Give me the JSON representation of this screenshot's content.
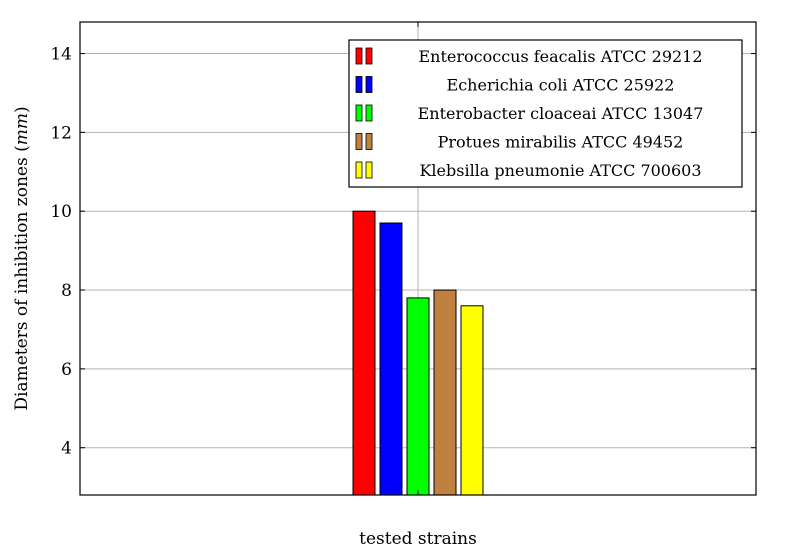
{
  "chart_data": {
    "type": "bar",
    "categories": [
      "tested strains"
    ],
    "xlabel": "tested strains",
    "ylabel_text": "Diameters of inhibition zones (",
    "ylabel_unit": "mm",
    "ylabel_close": ")",
    "ylim": [
      2.8,
      14.8
    ],
    "yticks": [
      4,
      6,
      8,
      10,
      12,
      14
    ],
    "ytick_labels": [
      "4",
      "6",
      "8",
      "10",
      "12",
      "14"
    ],
    "grid": true,
    "legend_position": "top-right",
    "series": [
      {
        "name": "Enterococcus feacalis ATCC 29212",
        "value": 10.0,
        "color": "#ff0000"
      },
      {
        "name": "Echerichia coli ATCC 25922",
        "value": 9.7,
        "color": "#0000ff"
      },
      {
        "name": "Enterobacter cloaceai ATCC 13047",
        "value": 7.8,
        "color": "#00ff00"
      },
      {
        "name": "Protues mirabilis ATCC 49452",
        "value": 8.0,
        "color": "#bf8040"
      },
      {
        "name": "Klebsilla pneumonie ATCC 700603",
        "value": 7.6,
        "color": "#ffff00"
      }
    ]
  }
}
